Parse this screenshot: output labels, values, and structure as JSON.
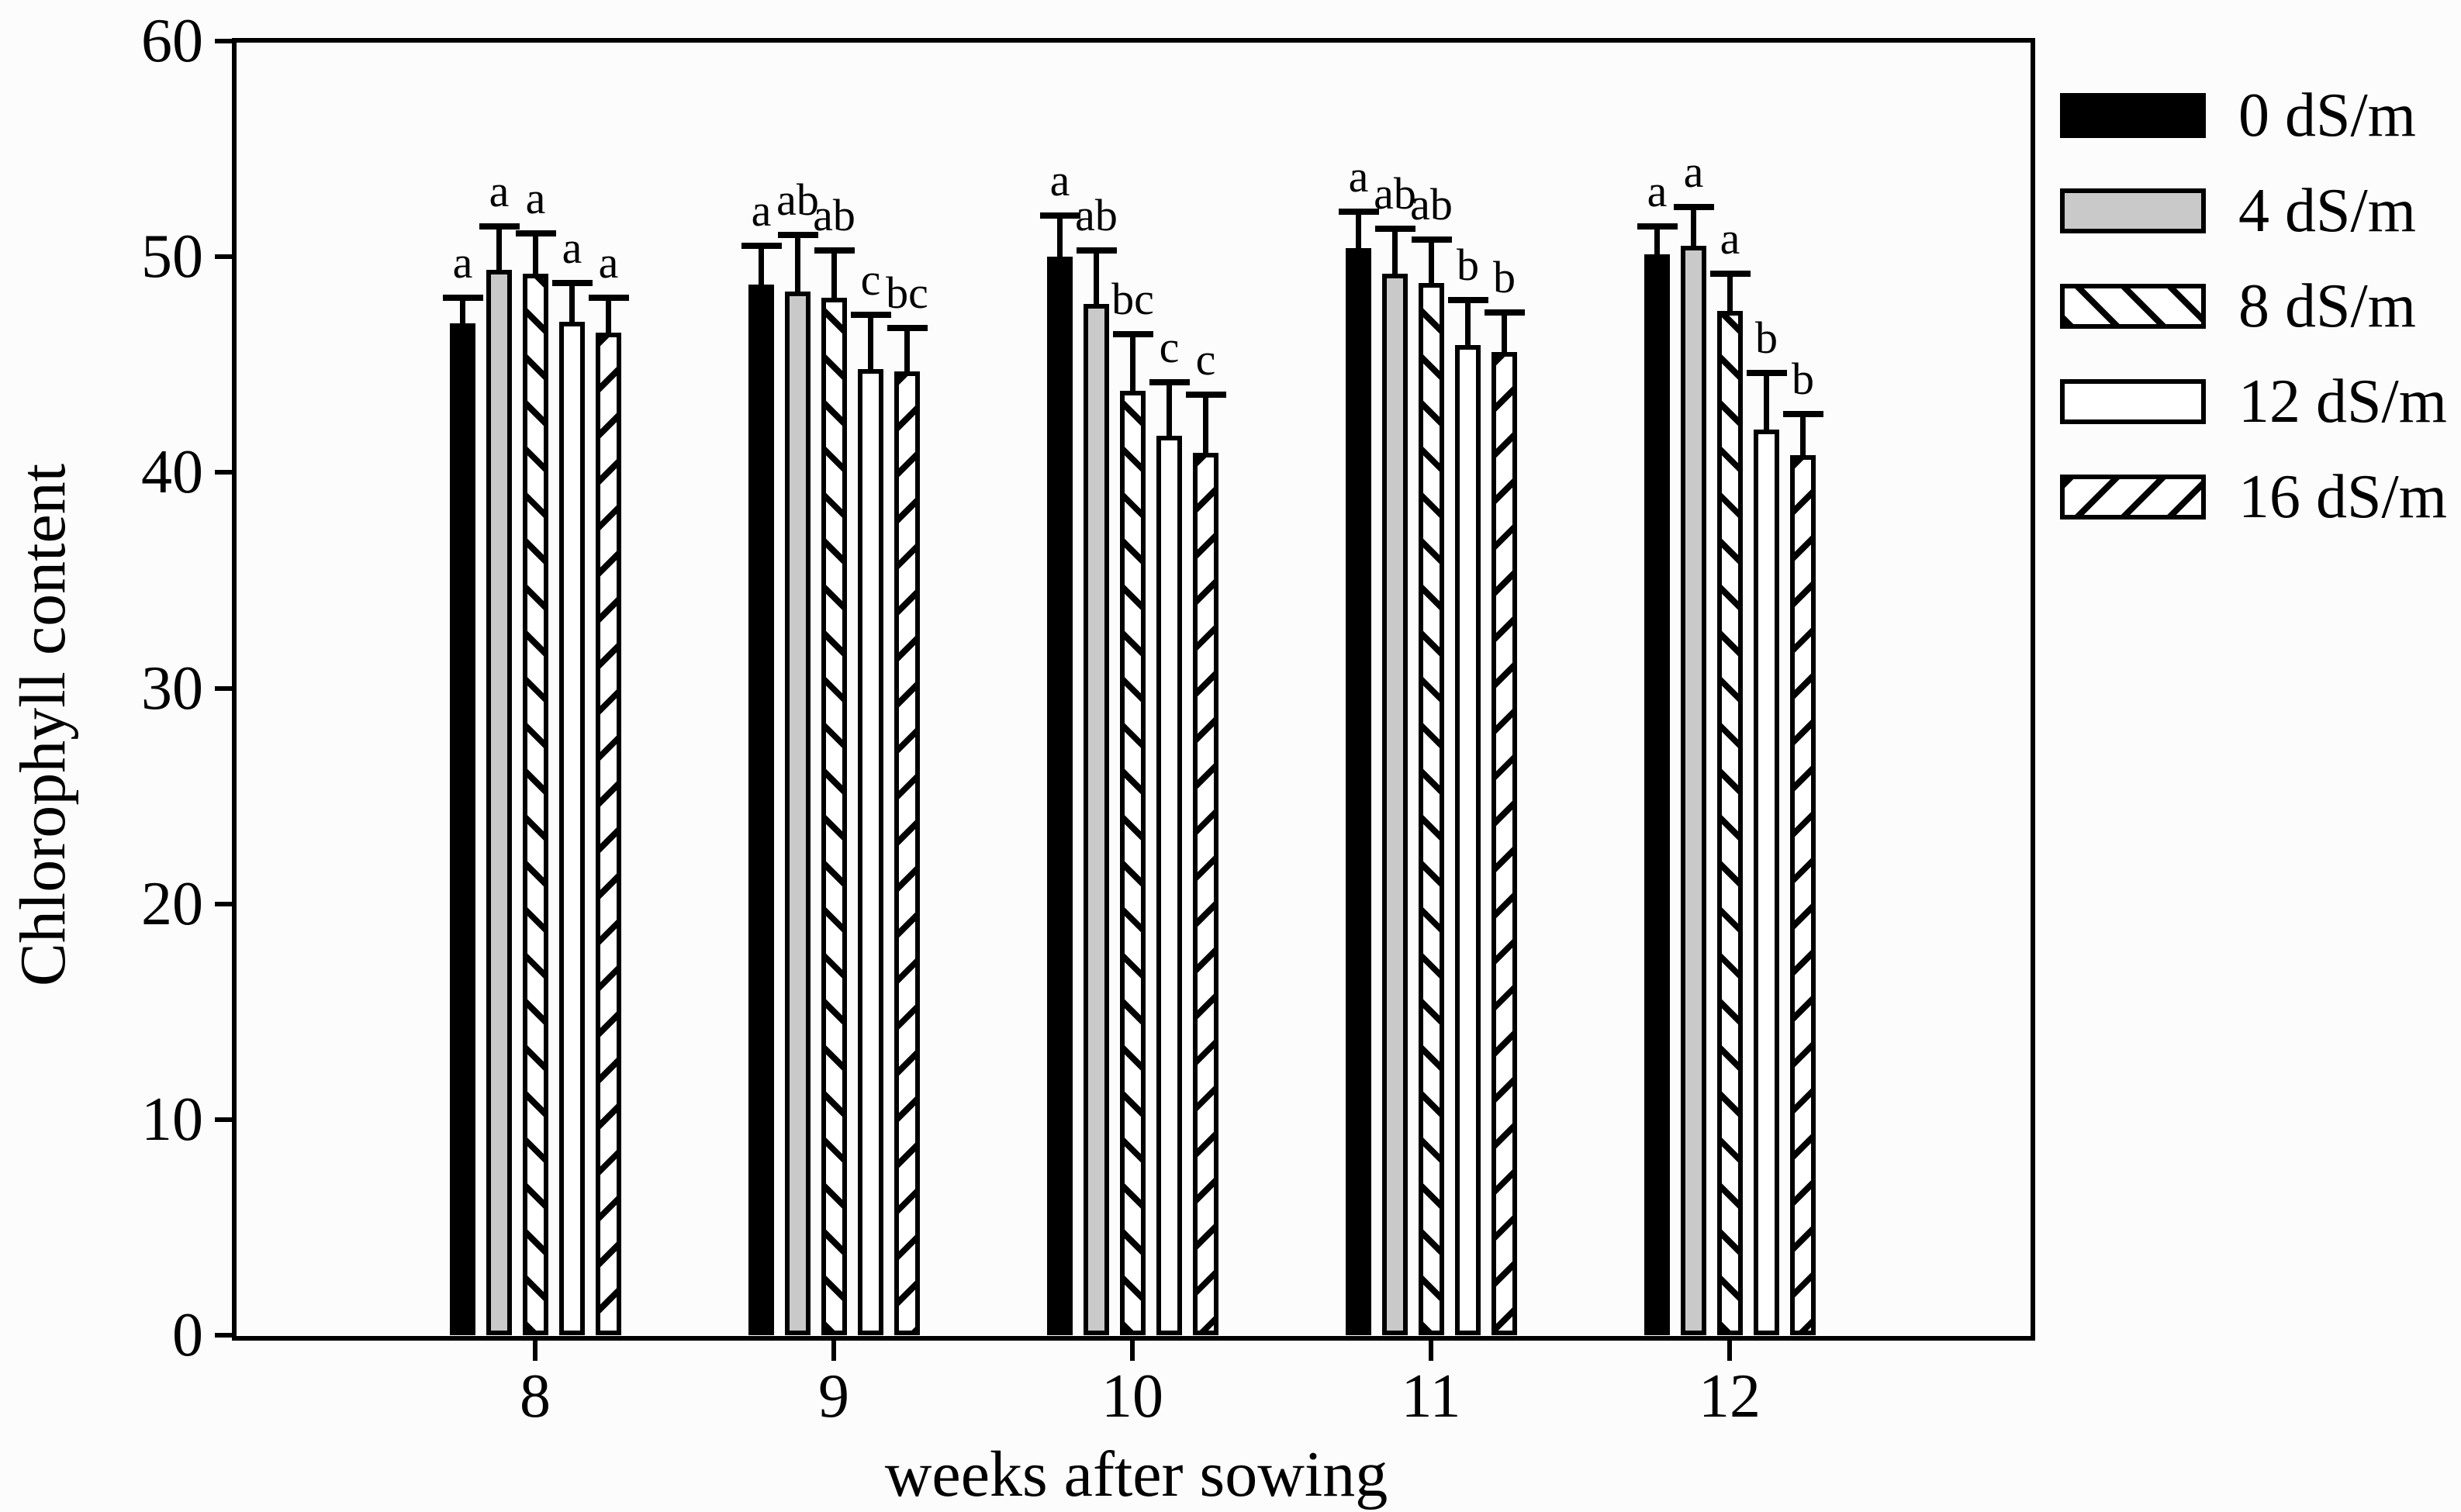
{
  "figure": {
    "background_color": "#fcfcfc",
    "axis_color": "#000000",
    "gray_fill_color": "#c9c9c9"
  },
  "chart_data": {
    "type": "bar",
    "title": "",
    "xlabel": "weeks after sowing",
    "ylabel": "Chlorophyll content",
    "ylim": [
      0,
      60
    ],
    "yticks": [
      0,
      10,
      20,
      30,
      40,
      50,
      60
    ],
    "grid": false,
    "legend_position": "upper-right-outside",
    "error_bars": true,
    "categories": [
      "8",
      "9",
      "10",
      "11",
      "12"
    ],
    "series": [
      {
        "name": "0 dS/m",
        "style": "solid-black",
        "values": [
          46.9,
          48.7,
          50.0,
          50.4,
          50.1
        ],
        "errors": [
          1.2,
          1.8,
          1.9,
          1.7,
          1.3
        ],
        "letters": [
          "a",
          "a",
          "a",
          "a",
          "a"
        ]
      },
      {
        "name": "4 dS/m",
        "style": "solid-gray",
        "values": [
          49.4,
          48.4,
          47.8,
          49.2,
          50.5
        ],
        "errors": [
          2.0,
          2.6,
          2.5,
          2.1,
          1.8
        ],
        "letters": [
          "a",
          "ab",
          "ab",
          "ab",
          "a"
        ]
      },
      {
        "name": "8 dS/m",
        "style": "hatch-backslash",
        "values": [
          49.2,
          48.1,
          43.8,
          48.8,
          47.5
        ],
        "errors": [
          1.9,
          2.2,
          2.6,
          2.0,
          1.7
        ],
        "letters": [
          "a",
          "ab",
          "bc",
          "ab",
          "a"
        ]
      },
      {
        "name": "12 dS/m",
        "style": "solid-white",
        "values": [
          47.0,
          44.8,
          41.7,
          45.9,
          42.0
        ],
        "errors": [
          1.8,
          2.5,
          2.5,
          2.1,
          2.6
        ],
        "letters": [
          "a",
          "c",
          "c",
          "b",
          "b"
        ]
      },
      {
        "name": "16 dS/m",
        "style": "hatch-forwardslash",
        "values": [
          46.5,
          44.7,
          40.9,
          45.6,
          40.8
        ],
        "errors": [
          1.6,
          2.0,
          2.7,
          1.8,
          1.9
        ],
        "letters": [
          "a",
          "bc",
          "c",
          "b",
          "b"
        ]
      }
    ]
  }
}
